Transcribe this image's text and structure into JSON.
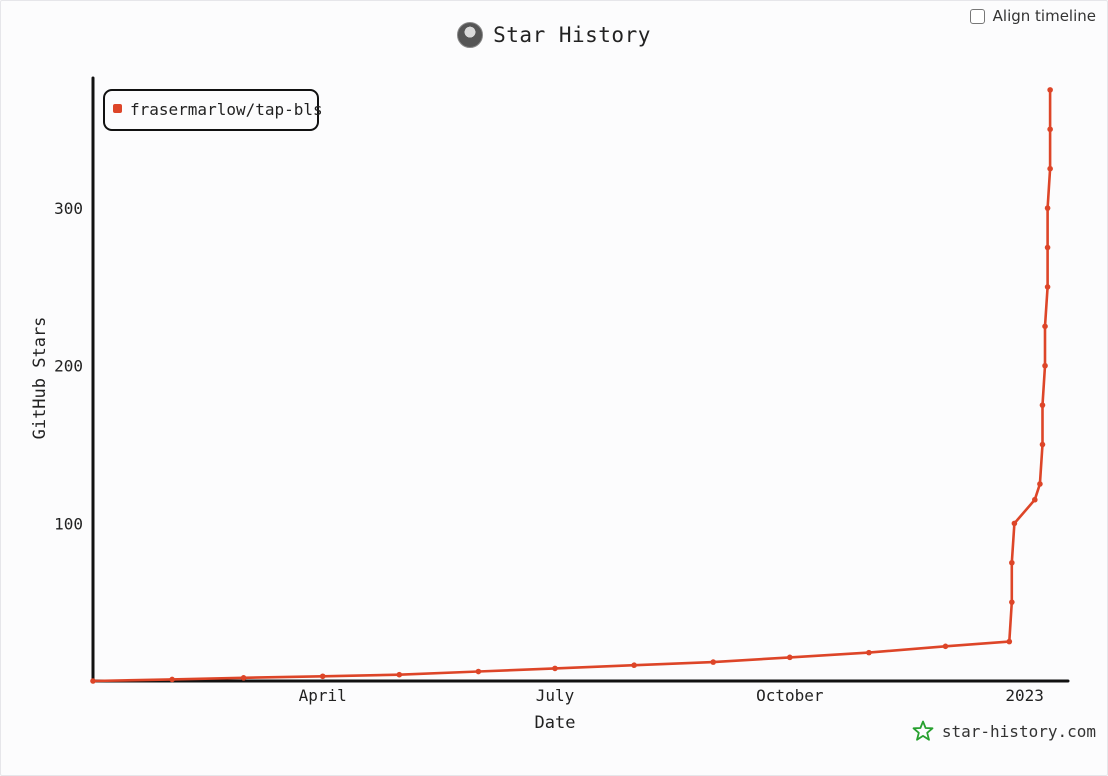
{
  "header": {
    "title": "Star History",
    "align_label": "Align timeline"
  },
  "brand": {
    "text": "star-history.com",
    "icon": "star-outline-icon"
  },
  "colors": {
    "series": "#dd4528",
    "axis": "#111111",
    "brand": "#27a02f"
  },
  "chart_data": {
    "type": "line",
    "xlabel": "Date",
    "ylabel": "GitHub Stars",
    "x_ticks": [
      {
        "label": "April",
        "date": "2022-04-01"
      },
      {
        "label": "July",
        "date": "2022-07-01"
      },
      {
        "label": "October",
        "date": "2022-10-01"
      },
      {
        "label": "2023",
        "date": "2023-01-01"
      }
    ],
    "y_ticks": [
      100,
      200,
      300
    ],
    "xlim": [
      "2022-01-01",
      "2023-01-18"
    ],
    "ylim": [
      0,
      380
    ],
    "legend_position": "top-left",
    "series": [
      {
        "name": "frasermarlow/tap-bls",
        "points": [
          {
            "x": "2022-01-01",
            "y": 0
          },
          {
            "x": "2022-02-01",
            "y": 1
          },
          {
            "x": "2022-03-01",
            "y": 2
          },
          {
            "x": "2022-04-01",
            "y": 3
          },
          {
            "x": "2022-05-01",
            "y": 4
          },
          {
            "x": "2022-06-01",
            "y": 6
          },
          {
            "x": "2022-07-01",
            "y": 8
          },
          {
            "x": "2022-08-01",
            "y": 10
          },
          {
            "x": "2022-09-01",
            "y": 12
          },
          {
            "x": "2022-10-01",
            "y": 15
          },
          {
            "x": "2022-11-01",
            "y": 18
          },
          {
            "x": "2022-12-01",
            "y": 22
          },
          {
            "x": "2022-12-26",
            "y": 25
          },
          {
            "x": "2022-12-27",
            "y": 50
          },
          {
            "x": "2022-12-27",
            "y": 75
          },
          {
            "x": "2022-12-28",
            "y": 100
          },
          {
            "x": "2023-01-05",
            "y": 115
          },
          {
            "x": "2023-01-07",
            "y": 125
          },
          {
            "x": "2023-01-08",
            "y": 150
          },
          {
            "x": "2023-01-08",
            "y": 175
          },
          {
            "x": "2023-01-09",
            "y": 200
          },
          {
            "x": "2023-01-09",
            "y": 225
          },
          {
            "x": "2023-01-10",
            "y": 250
          },
          {
            "x": "2023-01-10",
            "y": 275
          },
          {
            "x": "2023-01-10",
            "y": 300
          },
          {
            "x": "2023-01-11",
            "y": 325
          },
          {
            "x": "2023-01-11",
            "y": 350
          },
          {
            "x": "2023-01-11",
            "y": 375
          }
        ]
      }
    ]
  }
}
